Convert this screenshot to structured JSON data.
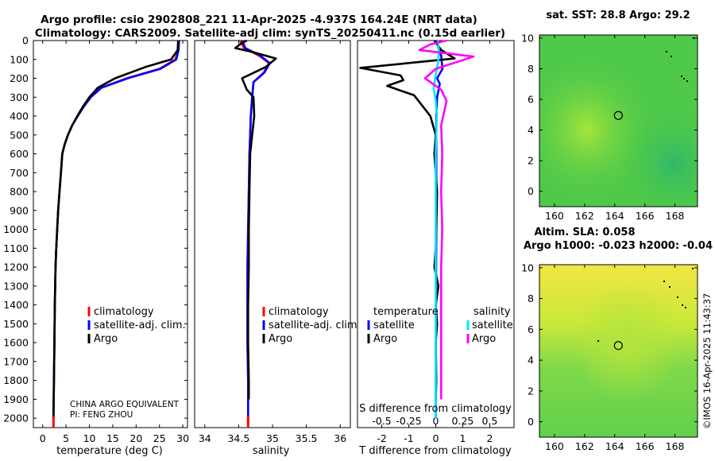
{
  "header": {
    "title_line1": "Argo profile: csio 2902808_221 11-Apr-2025 -4.937S 164.24E (NRT data)",
    "title_line2": "Climatology: CARS2009. Satellite-adj clim: synTS_20250411.nc (0.15d earlier)"
  },
  "credits": {
    "line1": "CHINA ARGO EQUIVALENT",
    "line2": "PI: FENG ZHOU",
    "timestamp": "©IMOS 16-Apr-2025 11:43:37"
  },
  "colors": {
    "climatology": "#ff0000",
    "satellite_adj": "#0000ff",
    "argo": "#000000",
    "satellite_salinity": "#00e5ff",
    "argo_salinity": "#ff00ff",
    "frame": "#000000"
  },
  "chart_data": [
    {
      "id": "temperature",
      "type": "line",
      "xlabel": "temperature (deg C)",
      "ylabel": "",
      "xlim": [
        -2,
        31
      ],
      "ylim": [
        2050,
        0
      ],
      "xticks": [
        "0",
        "5",
        "10",
        "15",
        "20",
        "25",
        "30"
      ],
      "yticks": [
        "0",
        "100",
        "200",
        "300",
        "400",
        "500",
        "600",
        "700",
        "800",
        "900",
        "1000",
        "1100",
        "1200",
        "1300",
        "1400",
        "1500",
        "1600",
        "1700",
        "1800",
        "1900",
        "2000"
      ],
      "legend": [
        "climatology",
        "satellite-adj. clim.",
        "Argo"
      ],
      "series": [
        {
          "name": "climatology",
          "color": "#ff0000",
          "x": [
            29.2,
            29.0,
            28.4,
            25,
            18,
            12.5,
            10.2,
            8.8,
            7.5,
            6.3,
            5.4,
            4.7,
            4.2,
            3.9,
            3.6,
            3.3,
            3.1,
            2.9,
            2.75,
            2.6,
            2.5,
            2.4,
            2.3
          ],
          "y": [
            0,
            50,
            100,
            150,
            200,
            250,
            300,
            350,
            400,
            450,
            500,
            550,
            600,
            700,
            800,
            900,
            1000,
            1100,
            1200,
            1400,
            1600,
            1800,
            2000
          ]
        },
        {
          "name": "satellite-adj. clim.",
          "color": "#0000ff",
          "x": [
            29.2,
            29.1,
            28.6,
            25.2,
            18.2,
            12.6,
            10.3,
            8.8,
            7.5,
            6.3,
            5.4,
            4.7,
            4.2,
            3.9,
            3.6,
            3.3,
            3.1,
            2.9,
            2.75,
            2.6,
            2.5,
            2.4,
            2.3
          ],
          "y": [
            0,
            50,
            100,
            150,
            200,
            250,
            300,
            350,
            400,
            450,
            500,
            550,
            600,
            700,
            800,
            900,
            1000,
            1100,
            1200,
            1400,
            1600,
            1800,
            2000
          ]
        },
        {
          "name": "Argo",
          "color": "#000000",
          "x": [
            29.0,
            28.9,
            27.5,
            22,
            15.5,
            11.8,
            10.0,
            8.6,
            7.4,
            6.3,
            5.4,
            4.7,
            4.2,
            3.9,
            3.6,
            3.3,
            3.1,
            2.9,
            2.75,
            2.6,
            2.5,
            2.4,
            2.3
          ],
          "y": [
            0,
            50,
            100,
            140,
            200,
            250,
            300,
            350,
            400,
            450,
            500,
            550,
            600,
            700,
            800,
            900,
            1000,
            1100,
            1200,
            1400,
            1600,
            1800,
            2000
          ]
        }
      ]
    },
    {
      "id": "salinity",
      "type": "line",
      "xlabel": "salinity",
      "ylabel": "",
      "xlim": [
        33.85,
        36.15
      ],
      "ylim": [
        2050,
        0
      ],
      "xticks": [
        "34",
        "34.5",
        "35",
        "35.5",
        "36"
      ],
      "legend": [
        "climatology",
        "satellite-adj. clim.",
        "Argo"
      ],
      "series": [
        {
          "name": "climatology",
          "color": "#ff0000",
          "x": [
            34.52,
            34.58,
            34.8,
            34.95,
            34.87,
            34.72,
            34.7,
            34.68,
            34.67,
            34.66,
            34.65,
            34.64,
            34.63,
            34.63,
            34.63,
            34.64,
            34.64
          ],
          "y": [
            0,
            40,
            80,
            120,
            170,
            220,
            300,
            400,
            500,
            600,
            800,
            1000,
            1200,
            1400,
            1600,
            1800,
            2000
          ]
        },
        {
          "name": "satellite-adj. clim.",
          "color": "#0000ff",
          "x": [
            34.55,
            34.6,
            34.82,
            34.96,
            34.88,
            34.72,
            34.7,
            34.68,
            34.67,
            34.66,
            34.65,
            34.64,
            34.63,
            34.63,
            34.63,
            34.64,
            34.64
          ],
          "y": [
            0,
            40,
            80,
            120,
            170,
            220,
            300,
            400,
            500,
            600,
            800,
            1000,
            1200,
            1400,
            1600,
            1800,
            2000
          ]
        },
        {
          "name": "Argo",
          "color": "#000000",
          "x": [
            34.62,
            34.52,
            34.45,
            34.7,
            35.05,
            34.9,
            34.55,
            34.62,
            34.72,
            34.73,
            34.7,
            34.67,
            34.66,
            34.65,
            34.65,
            34.64,
            34.64,
            34.65,
            34.65
          ],
          "y": [
            0,
            20,
            40,
            60,
            95,
            140,
            200,
            260,
            300,
            400,
            500,
            600,
            800,
            1000,
            1200,
            1400,
            1600,
            1800,
            1900
          ]
        }
      ]
    },
    {
      "id": "difference",
      "type": "line",
      "xlabel": "T difference from climatology",
      "xlabel2": "S difference from climatology",
      "xlim": [
        -2.9,
        2.9
      ],
      "xlim_salinity": [
        -0.725,
        0.725
      ],
      "ylim": [
        2050,
        0
      ],
      "xticks": [
        "-2",
        "-1",
        "0",
        "1",
        "2"
      ],
      "xticks_salinity": [
        "-0.5",
        "-0.25",
        "0",
        "0.25",
        "0.5"
      ],
      "legend_titles": [
        "temperature",
        "salinity"
      ],
      "legend": [
        "satellite",
        "Argo",
        "satellite",
        "Argo"
      ],
      "series": [
        {
          "name": "temperature satellite",
          "color": "#0000ff",
          "x": [
            0.05,
            0.1,
            0.2,
            0.25,
            0.05,
            0.15,
            0.05,
            0.02,
            0.02,
            0.02,
            0.02,
            0.01,
            0.0,
            0.0
          ],
          "y": [
            0,
            40,
            80,
            150,
            200,
            230,
            300,
            400,
            600,
            800,
            1000,
            1400,
            1800,
            2000
          ]
        },
        {
          "name": "temperature Argo",
          "color": "#000000",
          "x": [
            -0.05,
            0.2,
            0.7,
            -2.8,
            -1.3,
            -1.2,
            -1.8,
            -0.8,
            -0.2,
            0.0,
            -0.05,
            0.05,
            0.02,
            0.0,
            -0.05,
            0.1,
            0.0,
            0.05,
            0.0,
            0.02,
            0.0
          ],
          "y": [
            0,
            50,
            95,
            145,
            185,
            210,
            240,
            290,
            400,
            500,
            600,
            800,
            1000,
            1100,
            1200,
            1300,
            1400,
            1500,
            1600,
            1800,
            1900
          ]
        },
        {
          "name": "salinity satellite",
          "color": "#00e5ff",
          "x": [
            0.02,
            0.03,
            0.02,
            0.0,
            -0.02,
            0.0,
            0.01,
            0.0,
            0.0,
            0.0,
            0.0,
            0.0
          ],
          "y": [
            0,
            60,
            120,
            180,
            250,
            320,
            400,
            600,
            1000,
            1400,
            1800,
            2000
          ]
        },
        {
          "name": "salinity Argo",
          "color": "#ff00ff",
          "x": [
            0.1,
            -0.05,
            -0.15,
            0.35,
            0.0,
            -0.1,
            0.05,
            0.1,
            0.05,
            0.06,
            0.05,
            0.06,
            0.05,
            0.05,
            0.05
          ],
          "y": [
            0,
            20,
            50,
            85,
            150,
            200,
            260,
            320,
            450,
            600,
            800,
            1000,
            1200,
            1500,
            1900
          ],
          "scale": "salinity"
        }
      ]
    },
    {
      "id": "sst-map",
      "type": "heatmap",
      "title": "sat. SST: 28.8 Argo: 29.2",
      "xlim": [
        159,
        169.5
      ],
      "ylim": [
        -1,
        10.2
      ],
      "xticks": [
        "160",
        "162",
        "164",
        "166",
        "168"
      ],
      "yticks": [
        "0",
        "2",
        "4",
        "6",
        "8",
        "10"
      ],
      "marker": {
        "lon": 164.24,
        "lat": 4.95
      }
    },
    {
      "id": "sla-map",
      "type": "heatmap",
      "title": "Altim. SLA: 0.058",
      "subtitle": "Argo h1000: -0.023 h2000: -0.04",
      "xlim": [
        159,
        169.5
      ],
      "ylim": [
        -1,
        10.2
      ],
      "xticks": [
        "160",
        "162",
        "164",
        "166",
        "168"
      ],
      "yticks": [
        "0",
        "2",
        "4",
        "6",
        "8",
        "10"
      ],
      "marker": {
        "lon": 164.24,
        "lat": 4.95
      }
    }
  ]
}
